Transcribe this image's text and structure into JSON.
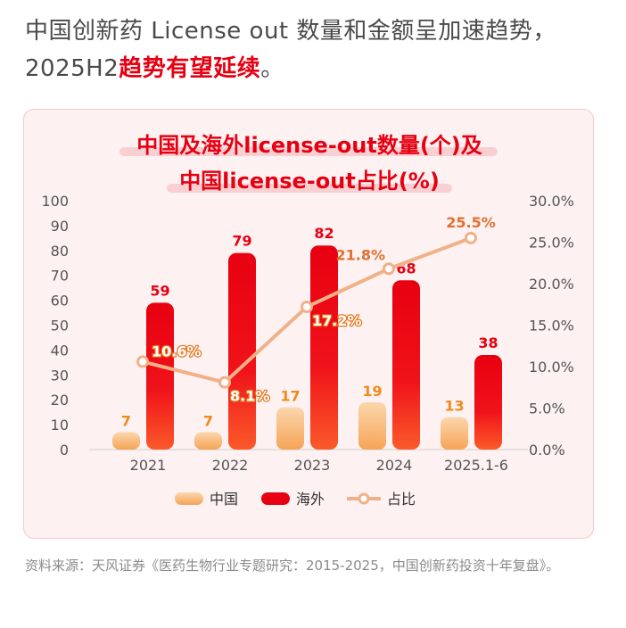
{
  "headline": {
    "line1": "中国创新药 License out 数量和金额呈加速趋势，",
    "line2_prefix": "2025H2",
    "line2_highlight": "趋势有望延续",
    "line2_suffix": "。"
  },
  "chart_data": {
    "type": "bar",
    "title_line1": "中国及海外license-out数量(个)及",
    "title_line2": "中国license-out占比(%)",
    "categories": [
      "2021",
      "2022",
      "2023",
      "2024",
      "2025.1-6"
    ],
    "series": [
      {
        "name": "中国",
        "type": "bar",
        "axis": "left",
        "values": [
          7,
          7,
          17,
          19,
          13
        ],
        "color": "#f7b26b"
      },
      {
        "name": "海外",
        "type": "bar",
        "axis": "left",
        "values": [
          59,
          79,
          82,
          68,
          38
        ],
        "color": "#e60012"
      },
      {
        "name": "占比",
        "type": "line",
        "axis": "right",
        "values": [
          10.6,
          8.1,
          17.2,
          21.8,
          25.5
        ],
        "labels": [
          "10.6%",
          "8.1%",
          "17.2%",
          "21.8%",
          "25.5%"
        ],
        "color": "#f0b088"
      }
    ],
    "ylim_left": [
      0,
      100
    ],
    "yticks_left": [
      "0",
      "10",
      "20",
      "30",
      "40",
      "50",
      "60",
      "70",
      "80",
      "90",
      "100"
    ],
    "ylim_right": [
      0,
      30
    ],
    "yticks_right": [
      "0.0%",
      "5.0%",
      "10.0%",
      "15.0%",
      "20.0%",
      "25.0%",
      "30.0%"
    ],
    "grid": false,
    "legend_position": "bottom",
    "colors": {
      "title": "#e60012",
      "axis_text": "#555555",
      "label_china": "#f08a1c",
      "label_overseas": "#e60012",
      "label_ratio_dark": "#e07030",
      "label_ratio_light": "#ffffff"
    }
  },
  "source": "资料来源：天风证券《医药生物行业专题研究：2015-2025，中国创新药投资十年复盘》。"
}
